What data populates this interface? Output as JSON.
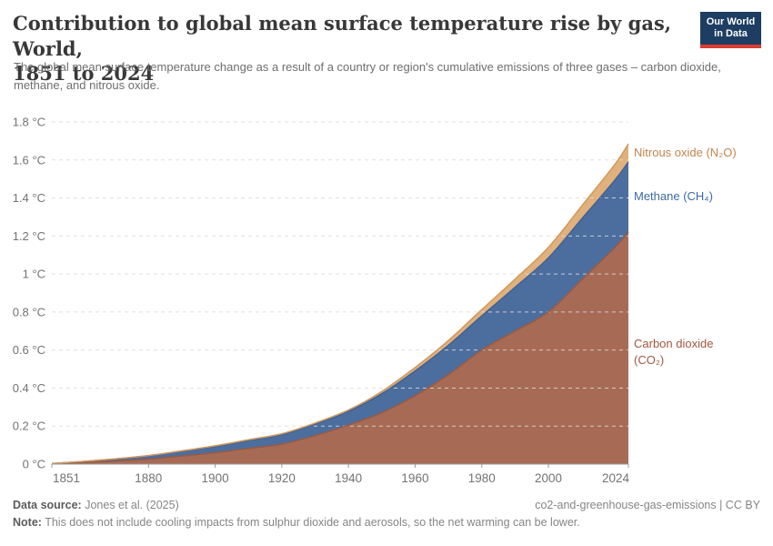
{
  "header": {
    "title_line1": "Contribution to global mean surface temperature rise by gas, World,",
    "title_line2": "1851 to 2024",
    "subtitle": "The global mean surface temperature change as a result of a country or region's cumulative emissions of three gases – carbon dioxide, methane, and nitrous oxide."
  },
  "logo": {
    "line1": "Our World",
    "line2": "in Data",
    "bg_color": "#1d3d63",
    "bar_color": "#d93d33"
  },
  "chart_data": {
    "type": "area",
    "stacked": true,
    "title": "Contribution to global mean surface temperature rise by gas, World, 1851 to 2024",
    "xlabel": "",
    "ylabel": "",
    "xlim": [
      1851,
      2024
    ],
    "ylim": [
      0,
      1.8
    ],
    "grid": true,
    "legend_position": "right-direct-labels",
    "x": [
      1851,
      1860,
      1870,
      1880,
      1890,
      1900,
      1910,
      1920,
      1930,
      1940,
      1950,
      1960,
      1970,
      1980,
      1990,
      2000,
      2010,
      2020,
      2024
    ],
    "series": [
      {
        "id": "co2",
        "name": "Carbon dioxide (CO₂)",
        "label": "Carbon dioxide (CO₂)",
        "unit": "°C",
        "values": [
          0.002,
          0.008,
          0.016,
          0.026,
          0.042,
          0.06,
          0.082,
          0.105,
          0.15,
          0.205,
          0.27,
          0.36,
          0.47,
          0.6,
          0.7,
          0.8,
          0.97,
          1.14,
          1.22
        ],
        "fill_color": "#a76b55",
        "line_color": "#9a5a43",
        "label_color": "#a3573d"
      },
      {
        "id": "ch4",
        "name": "Methane (CH₄)",
        "label": "Methane (CH₄)",
        "unit": "°C",
        "values": [
          0.001,
          0.005,
          0.011,
          0.018,
          0.026,
          0.033,
          0.042,
          0.05,
          0.06,
          0.072,
          0.1,
          0.13,
          0.155,
          0.18,
          0.23,
          0.285,
          0.32,
          0.355,
          0.37
        ],
        "fill_color": "#4c6e9e",
        "line_color": "#3f6295",
        "label_color": "#3e6ba5"
      },
      {
        "id": "n2o",
        "name": "Nitrous oxide (N₂O)",
        "label": "Nitrous oxide (N₂O)",
        "unit": "°C",
        "values": [
          0.0,
          0.001,
          0.001,
          0.001,
          0.002,
          0.003,
          0.004,
          0.005,
          0.006,
          0.008,
          0.012,
          0.018,
          0.025,
          0.033,
          0.043,
          0.055,
          0.068,
          0.083,
          0.095
        ],
        "fill_color": "#e0b17d",
        "line_color": "#d1985c",
        "label_color": "#c0854f"
      }
    ],
    "y_ticks": [
      "0 °C",
      "0.2 °C",
      "0.4 °C",
      "0.6 °C",
      "0.8 °C",
      "1 °C",
      "1.2 °C",
      "1.4 °C",
      "1.6 °C",
      "1.8 °C"
    ],
    "y_tick_values": [
      0,
      0.2,
      0.4,
      0.6,
      0.8,
      1.0,
      1.2,
      1.4,
      1.6,
      1.8
    ],
    "x_ticks": [
      "1851",
      "1880",
      "1900",
      "1920",
      "1940",
      "1960",
      "1980",
      "2000",
      "2024"
    ],
    "x_tick_values": [
      1851,
      1880,
      1900,
      1920,
      1940,
      1960,
      1980,
      2000,
      2024
    ]
  },
  "footer": {
    "source_label": "Data source:",
    "source_text": " Jones et al. (2025)",
    "right_text": "co2-and-greenhouse-gas-emissions | CC BY",
    "note_label": "Note:",
    "note_text": " This does not include cooling impacts from sulphur dioxide and aerosols, so the net warming can be lower."
  }
}
